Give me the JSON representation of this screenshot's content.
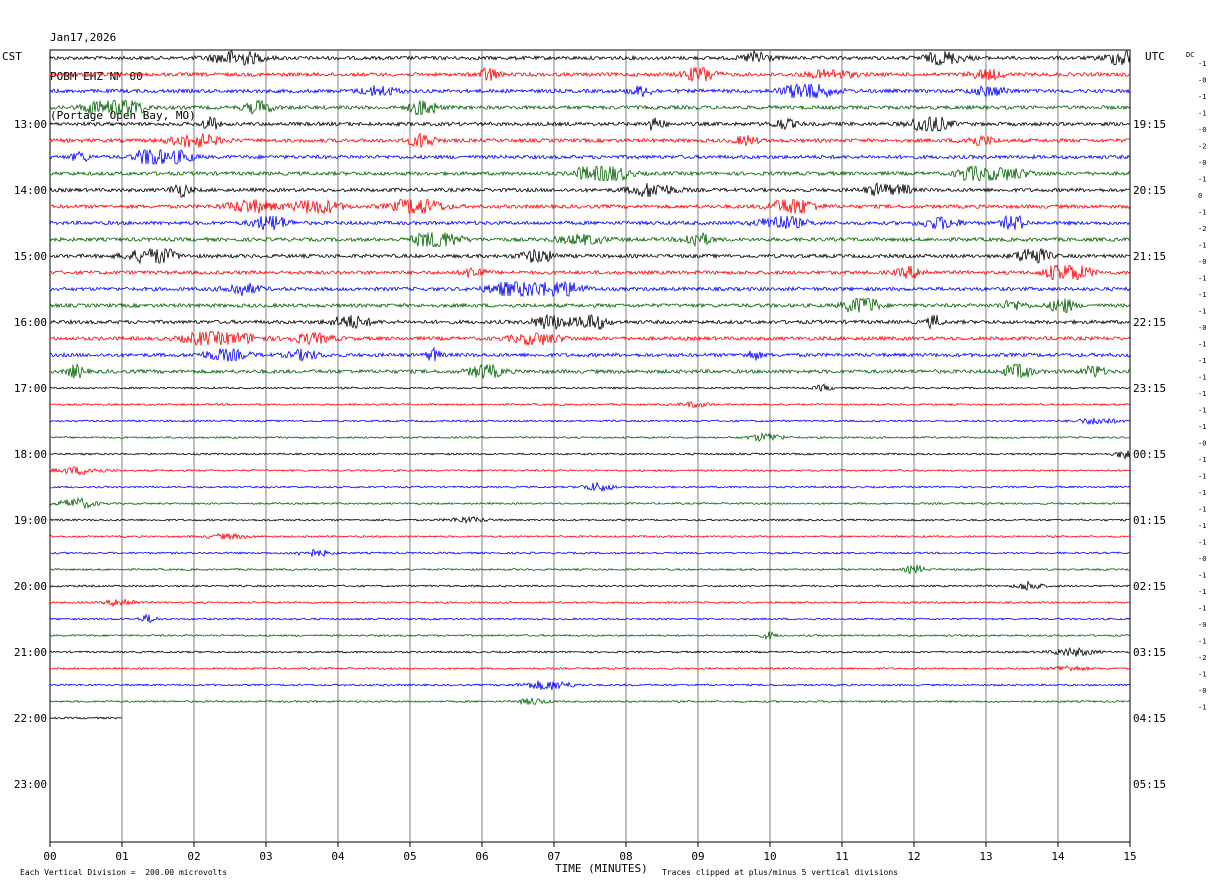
{
  "header": {
    "date": "Jan17,2026",
    "station": "POBM EHZ NM 00",
    "location": "(Portage Open Bay, MO)"
  },
  "left_tz": "CST",
  "right_tz": "UTC",
  "dc_label": "DC",
  "footer": {
    "scale_note": "Each Vertical Division =  200.00 microvolts",
    "clip_note": "Traces clipped at plus/minus 5 vertical divisions"
  },
  "chart_data": {
    "type": "line",
    "title": "",
    "xlabel": "TIME (MINUTES)",
    "xlim": [
      0,
      15
    ],
    "x_ticks": [
      "00",
      "01",
      "02",
      "03",
      "04",
      "05",
      "06",
      "07",
      "08",
      "09",
      "10",
      "11",
      "12",
      "13",
      "14",
      "15"
    ],
    "trace_colors": [
      "#000000",
      "#ff0000",
      "#0000ff",
      "#006400"
    ],
    "rows_total": 48,
    "left_time_labels": [
      "13:00",
      "14:00",
      "15:00",
      "16:00",
      "17:00",
      "18:00",
      "19:00",
      "20:00",
      "21:00",
      "22:00",
      "23:00"
    ],
    "right_time_labels": [
      "19:15",
      "20:15",
      "21:15",
      "22:15",
      "23:15",
      "00:15",
      "01:15",
      "02:15",
      "03:15",
      "04:15",
      "05:15"
    ],
    "first_labeled_row": 4,
    "trace_count": 41,
    "last_trace_end_minute": 1.0,
    "dc_offsets": [
      "-1",
      "-0",
      "-1",
      "-1",
      "-0",
      "-2",
      "-0",
      "-1",
      "0",
      "-1",
      "-2",
      "-1",
      "-0",
      "-1",
      "-1",
      "-1",
      "-0",
      "-1",
      "-1",
      "-1",
      "-1",
      "-1",
      "-1",
      "-0",
      "-1",
      "-1",
      "-1",
      "-1",
      "-1",
      "-1",
      "-0",
      "-1",
      "-1",
      "-1",
      "-0",
      "-1",
      "-2",
      "-1",
      "-0",
      "-1"
    ]
  }
}
